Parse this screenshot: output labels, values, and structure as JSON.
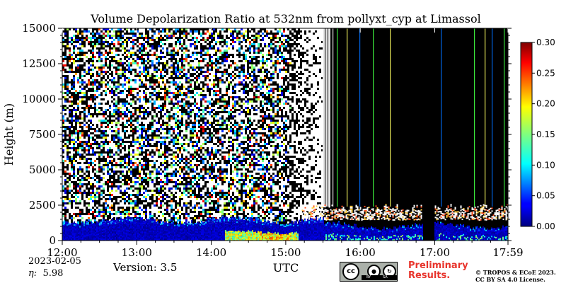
{
  "chart_data": {
    "type": "heatmap",
    "title": "Volume Depolarization Ratio at 532nm from pollyxt_cyp at Limassol",
    "ylabel": "Height (m)",
    "xlabel": "UTC",
    "x_ticks": [
      "12:00",
      "13:00",
      "14:00",
      "15:00",
      "16:00",
      "17:00",
      "17:59"
    ],
    "y_ticks": [
      0,
      2500,
      5000,
      7500,
      10000,
      12500,
      15000
    ],
    "ylim": [
      0,
      15000
    ],
    "xlim": [
      "12:00",
      "17:59"
    ],
    "colorbar": {
      "ticks": [
        "0.00",
        "0.05",
        "0.10",
        "0.15",
        "0.20",
        "0.25",
        "0.30"
      ],
      "range": [
        0,
        0.3
      ],
      "colormap": "jet"
    },
    "features": {
      "signal_cutoff_time": "15:30",
      "no_data_after_cutoff": true,
      "boundary_layer_top_m": 1300,
      "cloud_layer_height_m": [
        1800,
        2600
      ],
      "high_depol_near_surface_time": [
        "14:10",
        "15:10"
      ]
    }
  },
  "info": {
    "date": "2023-02-05",
    "eta_label": "η:",
    "eta_value": "5.98",
    "version": "Version: 3.5",
    "preliminary": "Preliminary",
    "results": "Results.",
    "copyright_line1": "© TROPOS & ECoE 2023.",
    "copyright_line2": "CC BY SA 4.0 License."
  },
  "license_badge": {
    "cc": "cc",
    "by": "BY",
    "sa": "SA"
  },
  "colors": {
    "background": "#000000",
    "title": "#000000",
    "preliminary": "#e8342c"
  }
}
